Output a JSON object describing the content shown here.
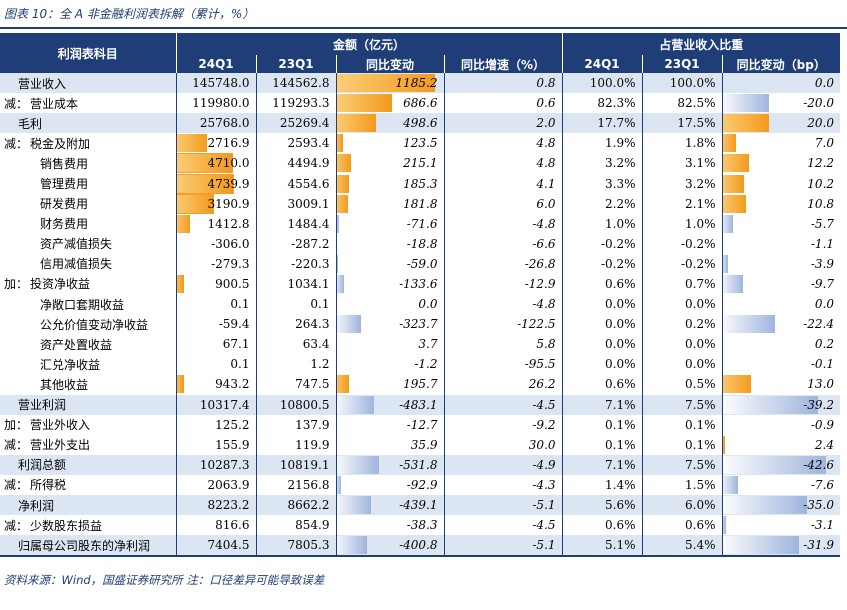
{
  "caption": "图表 10：全 A 非金融利润表拆解（累计，%）",
  "footer": "资料来源：Wind，国盛证券研究所  注：口径差异可能导致误差",
  "colors": {
    "header_bg": "#1f3e78",
    "pos_bar": "#f39a1d",
    "neg_bar": "#9fb5dd",
    "shade": "#dce6f2"
  },
  "header": {
    "item_col": "利润表科目",
    "group_amount": "金额（亿元）",
    "group_share": "占营业收入比重",
    "sub": [
      "24Q1",
      "23Q1",
      "同比变动",
      "同比增速（%）",
      "24Q1",
      "23Q1",
      "同比变动（bp）"
    ]
  },
  "rows": [
    {
      "prefix": "",
      "label": "营业收入",
      "a24": "145748.0",
      "a23": "144562.8",
      "chg": "1185.2",
      "yoy": "0.8",
      "s24": "100.0%",
      "s23": "100.0%",
      "bp": "0.0",
      "shade": true
    },
    {
      "prefix": "减：",
      "label": "营业成本",
      "a24": "119980.0",
      "a23": "119293.3",
      "chg": "686.6",
      "yoy": "0.6",
      "s24": "82.3%",
      "s23": "82.5%",
      "bp": "-20.0",
      "shade": false
    },
    {
      "prefix": "",
      "label": "毛利",
      "a24": "25768.0",
      "a23": "25269.4",
      "chg": "498.6",
      "yoy": "2.0",
      "s24": "17.7%",
      "s23": "17.5%",
      "bp": "20.0",
      "shade": true
    },
    {
      "prefix": "减：",
      "label": "税金及附加",
      "a24": "2716.9",
      "a23": "2593.4",
      "chg": "123.5",
      "yoy": "4.8",
      "s24": "1.9%",
      "s23": "1.8%",
      "bp": "7.0",
      "shade": false
    },
    {
      "prefix": "",
      "label": "销售费用",
      "a24": "4710.0",
      "a23": "4494.9",
      "chg": "215.1",
      "yoy": "4.8",
      "s24": "3.2%",
      "s23": "3.1%",
      "bp": "12.2",
      "shade": false
    },
    {
      "prefix": "",
      "label": "管理费用",
      "a24": "4739.9",
      "a23": "4554.6",
      "chg": "185.3",
      "yoy": "4.1",
      "s24": "3.3%",
      "s23": "3.2%",
      "bp": "10.2",
      "shade": false
    },
    {
      "prefix": "",
      "label": "研发费用",
      "a24": "3190.9",
      "a23": "3009.1",
      "chg": "181.8",
      "yoy": "6.0",
      "s24": "2.2%",
      "s23": "2.1%",
      "bp": "10.8",
      "shade": false
    },
    {
      "prefix": "",
      "label": "财务费用",
      "a24": "1412.8",
      "a23": "1484.4",
      "chg": "-71.6",
      "yoy": "-4.8",
      "s24": "1.0%",
      "s23": "1.0%",
      "bp": "-5.7",
      "shade": false
    },
    {
      "prefix": "",
      "label": "资产减值损失",
      "a24": "-306.0",
      "a23": "-287.2",
      "chg": "-18.8",
      "yoy": "-6.6",
      "s24": "-0.2%",
      "s23": "-0.2%",
      "bp": "-1.1",
      "shade": false
    },
    {
      "prefix": "",
      "label": "信用减值损失",
      "a24": "-279.3",
      "a23": "-220.3",
      "chg": "-59.0",
      "yoy": "-26.8",
      "s24": "-0.2%",
      "s23": "-0.2%",
      "bp": "-3.9",
      "shade": false
    },
    {
      "prefix": "加：",
      "label": "投资净收益",
      "a24": "900.5",
      "a23": "1034.1",
      "chg": "-133.6",
      "yoy": "-12.9",
      "s24": "0.6%",
      "s23": "0.7%",
      "bp": "-9.7",
      "shade": false
    },
    {
      "prefix": "",
      "label": "净敞口套期收益",
      "a24": "0.1",
      "a23": "0.1",
      "chg": "0.0",
      "yoy": "-4.8",
      "s24": "0.0%",
      "s23": "0.0%",
      "bp": "0.0",
      "shade": false
    },
    {
      "prefix": "",
      "label": "公允价值变动净收益",
      "a24": "-59.4",
      "a23": "264.3",
      "chg": "-323.7",
      "yoy": "-122.5",
      "s24": "0.0%",
      "s23": "0.2%",
      "bp": "-22.4",
      "shade": false
    },
    {
      "prefix": "",
      "label": "资产处置收益",
      "a24": "67.1",
      "a23": "63.4",
      "chg": "3.7",
      "yoy": "5.8",
      "s24": "0.0%",
      "s23": "0.0%",
      "bp": "0.2",
      "shade": false
    },
    {
      "prefix": "",
      "label": "汇兑净收益",
      "a24": "0.1",
      "a23": "1.2",
      "chg": "-1.2",
      "yoy": "-95.5",
      "s24": "0.0%",
      "s23": "0.0%",
      "bp": "-0.1",
      "shade": false
    },
    {
      "prefix": "",
      "label": "其他收益",
      "a24": "943.2",
      "a23": "747.5",
      "chg": "195.7",
      "yoy": "26.2",
      "s24": "0.6%",
      "s23": "0.5%",
      "bp": "13.0",
      "shade": false
    },
    {
      "prefix": "",
      "label": "营业利润",
      "a24": "10317.4",
      "a23": "10800.5",
      "chg": "-483.1",
      "yoy": "-4.5",
      "s24": "7.1%",
      "s23": "7.5%",
      "bp": "-39.2",
      "shade": true
    },
    {
      "prefix": "加：",
      "label": "营业外收入",
      "a24": "125.2",
      "a23": "137.9",
      "chg": "-12.7",
      "yoy": "-9.2",
      "s24": "0.1%",
      "s23": "0.1%",
      "bp": "-0.9",
      "shade": false
    },
    {
      "prefix": "减：",
      "label": "营业外支出",
      "a24": "155.9",
      "a23": "119.9",
      "chg": "35.9",
      "yoy": "30.0",
      "s24": "0.1%",
      "s23": "0.1%",
      "bp": "2.4",
      "shade": false
    },
    {
      "prefix": "",
      "label": "利润总额",
      "a24": "10287.3",
      "a23": "10819.1",
      "chg": "-531.8",
      "yoy": "-4.9",
      "s24": "7.1%",
      "s23": "7.5%",
      "bp": "-42.6",
      "shade": true
    },
    {
      "prefix": "减：",
      "label": "所得税",
      "a24": "2063.9",
      "a23": "2156.8",
      "chg": "-92.9",
      "yoy": "-4.3",
      "s24": "1.4%",
      "s23": "1.5%",
      "bp": "-7.6",
      "shade": false
    },
    {
      "prefix": "",
      "label": "净利润",
      "a24": "8223.2",
      "a23": "8662.2",
      "chg": "-439.1",
      "yoy": "-5.1",
      "s24": "5.6%",
      "s23": "6.0%",
      "bp": "-35.0",
      "shade": true
    },
    {
      "prefix": "减：",
      "label": "少数股东损益",
      "a24": "816.6",
      "a23": "854.9",
      "chg": "-38.3",
      "yoy": "-4.5",
      "s24": "0.6%",
      "s23": "0.6%",
      "bp": "-3.1",
      "shade": false
    },
    {
      "prefix": "",
      "label": "归属母公司股东的净利润",
      "a24": "7404.5",
      "a23": "7805.3",
      "chg": "-400.8",
      "yoy": "-5.1",
      "s24": "5.1%",
      "s23": "5.4%",
      "bp": "-31.9",
      "shade": true
    }
  ]
}
